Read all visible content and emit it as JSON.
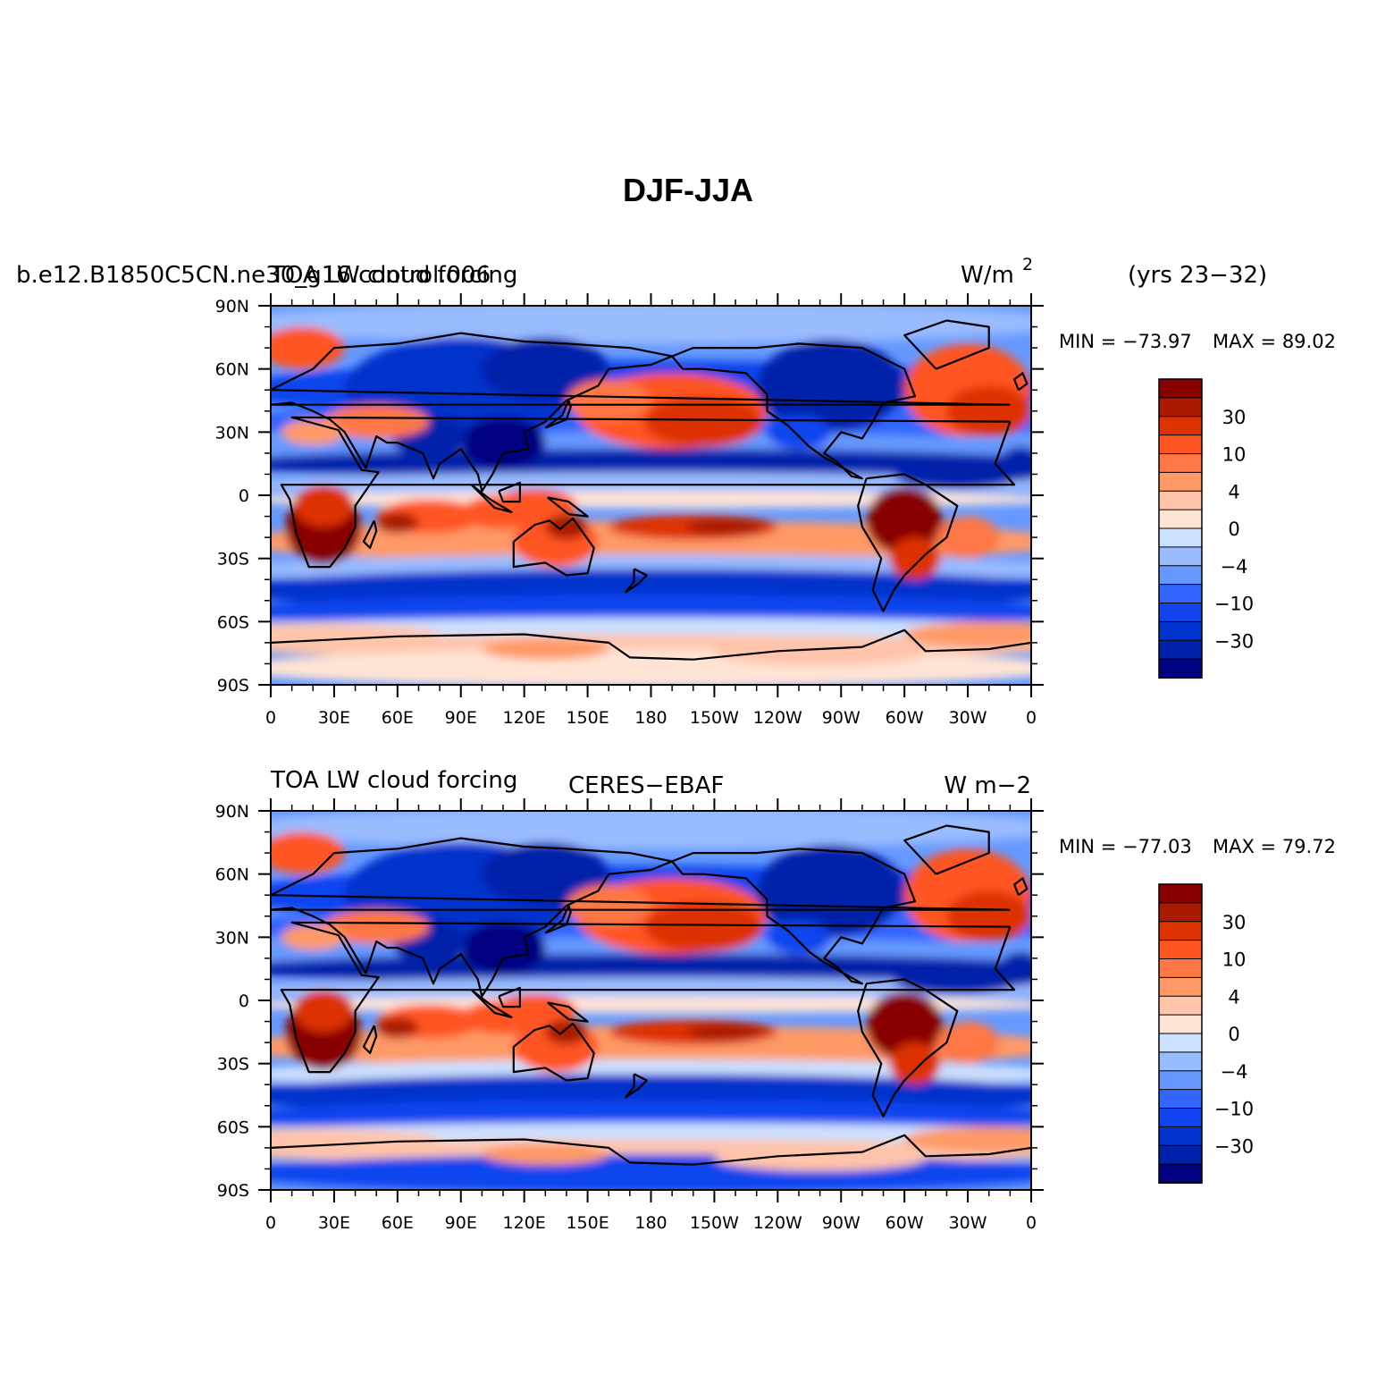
{
  "figure": {
    "main_title": "DJF-JJA",
    "colors": {
      "palette": [
        "#000080",
        "#0022aa",
        "#0033cc",
        "#1144ee",
        "#3366ff",
        "#6699ff",
        "#99bbff",
        "#cce0ff",
        "#ffe4d6",
        "#ffc4aa",
        "#ff9966",
        "#ff7744",
        "#ff5522",
        "#dd3300",
        "#aa1a00",
        "#880000"
      ],
      "continent_outline": "#000000"
    }
  },
  "chart_data": [
    {
      "type": "heatmap",
      "panel": "top",
      "title_left": "b.e12.B1850C5CN.ne30_g16.control.006",
      "title_left_overlay": "TOA LW cloud forcing",
      "units": "W/m",
      "units_superscript": "2",
      "title_right": "(yrs 23−32)",
      "min_label": "MIN = −73.97",
      "max_label": "MAX =  89.02",
      "min": -73.97,
      "max": 89.02,
      "y_ticks": [
        "90N",
        "60N",
        "30N",
        "0",
        "30S",
        "60S",
        "90S"
      ],
      "x_ticks": [
        "0",
        "30E",
        "60E",
        "90E",
        "120E",
        "150E",
        "180",
        "150W",
        "120W",
        "90W",
        "60W",
        "30W",
        "0"
      ],
      "ylim": [
        -90,
        90
      ],
      "xlim": [
        0,
        360
      ],
      "colorbar_labels": [
        "30",
        "10",
        "4",
        "0",
        "−4",
        "−10",
        "−30"
      ]
    },
    {
      "type": "heatmap",
      "panel": "bottom",
      "title_left": "TOA LW cloud forcing",
      "title_center": "CERES−EBAF",
      "units": "W m−2",
      "min_label": "MIN = −77.03",
      "max_label": "MAX =  79.72",
      "min": -77.03,
      "max": 79.72,
      "y_ticks": [
        "90N",
        "60N",
        "30N",
        "0",
        "30S",
        "60S",
        "90S"
      ],
      "x_ticks": [
        "0",
        "30E",
        "60E",
        "90E",
        "120E",
        "150E",
        "180",
        "150W",
        "120W",
        "90W",
        "60W",
        "30W",
        "0"
      ],
      "ylim": [
        -90,
        90
      ],
      "xlim": [
        0,
        360
      ],
      "colorbar_labels": [
        "30",
        "10",
        "4",
        "0",
        "−4",
        "−10",
        "−30"
      ]
    }
  ]
}
